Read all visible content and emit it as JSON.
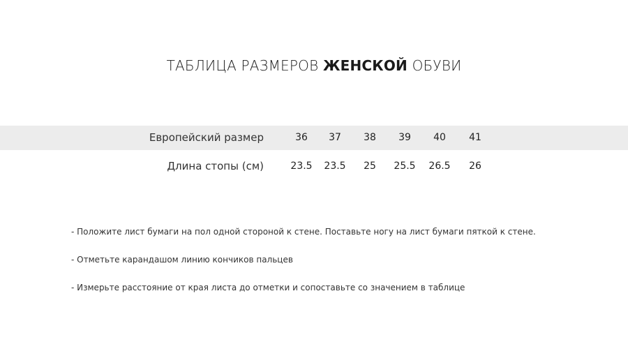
{
  "title": {
    "prefix": "ТАБЛИЦА РАЗМЕРОВ",
    "bold": "ЖЕНСКОЙ",
    "suffix": "ОБУВИ"
  },
  "table": {
    "rows": [
      {
        "label": "Европейский размер",
        "values": [
          "36",
          "37",
          "38",
          "39",
          "40",
          "41"
        ]
      },
      {
        "label": "Длина стопы (см)",
        "values": [
          "23.5",
          "23.5",
          "25",
          "25.5",
          "26.5",
          "26"
        ]
      }
    ],
    "highlight_color": "#ececec"
  },
  "instructions": [
    "- Положите лист бумаги на пол одной стороной к стене. Поставьте ногу на лист бумаги пяткой к стене.",
    "- Отметьте карандашом линию кончиков пальцев",
    "- Измерьте расстояние от края листа до отметки и сопоставьте со значением в таблице"
  ]
}
